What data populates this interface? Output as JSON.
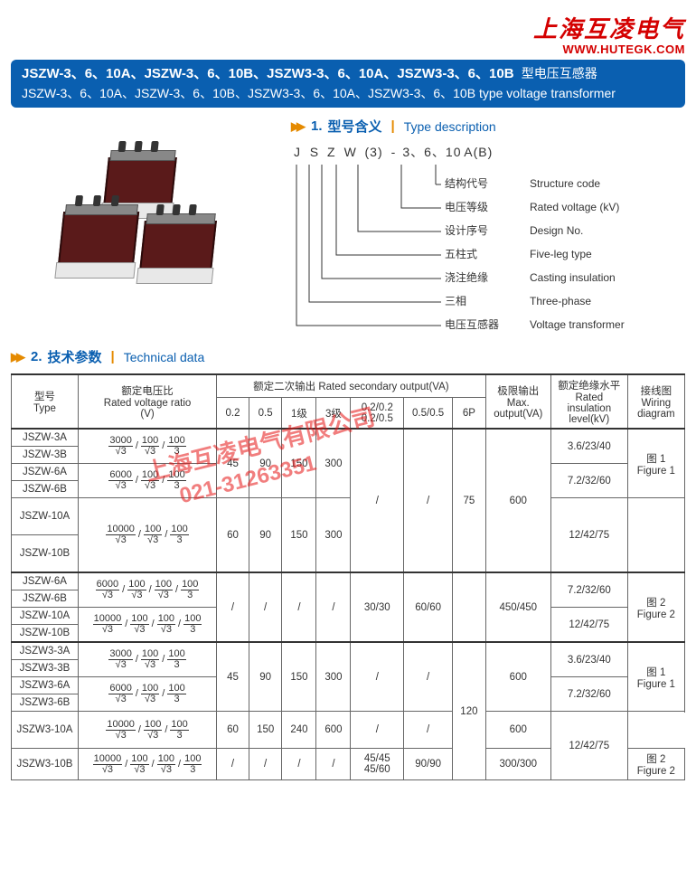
{
  "brand": {
    "cn": "上海互凌电气",
    "url": "WWW.HUTEGK.COM"
  },
  "title": {
    "cn_models": "JSZW-3、6、10A、JSZW-3、6、10B、JSZW3-3、6、10A、JSZW3-3、6、10B",
    "cn_suffix": "型电压互感器",
    "en": "JSZW-3、6、10A、JSZW-3、6、10B、JSZW3-3、6、10A、JSZW3-3、6、10B type voltage transformer"
  },
  "section1": {
    "num": "1.",
    "cn": "型号含义",
    "en": "Type description"
  },
  "type_code": {
    "chars": [
      "J",
      "S",
      "Z",
      "W",
      "(3)",
      "-",
      "3、6、10",
      "A(B)"
    ],
    "rows": [
      {
        "cn": "结构代号",
        "en": "Structure code"
      },
      {
        "cn": "电压等级",
        "en": "Rated voltage (kV)"
      },
      {
        "cn": "设计序号",
        "en": "Design No."
      },
      {
        "cn": "五柱式",
        "en": "Five-leg type"
      },
      {
        "cn": "浇注绝缘",
        "en": "Casting insulation"
      },
      {
        "cn": "三相",
        "en": "Three-phase"
      },
      {
        "cn": "电压互感器",
        "en": "Voltage transformer"
      }
    ]
  },
  "section2": {
    "num": "2.",
    "cn": "技术参数",
    "en": "Technical data"
  },
  "watermark": {
    "line1": "上海互凌电气有限公司",
    "line2": "021-31263351"
  },
  "headers": {
    "type": "型号\nType",
    "ratio": "额定电压比\nRated voltage ratio\n(V)",
    "secondary": "额定二次输出  Rated secondary output(VA)",
    "sec_cols_1": [
      "0.2",
      "0.5",
      "1级",
      "3级"
    ],
    "sec_cols_2a": "0.2/0.2\n0.2/0.5",
    "sec_cols_2b": "0.5/0.5",
    "sec_cols_2c": "6P",
    "max": "极限输出\nMax.\noutput(VA)",
    "insul": "额定绝缘水平\nRated insulation\nlevel(kV)",
    "wiring": "接线图\nWiring\ndiagram"
  },
  "ratios": {
    "r3000_3": [
      [
        "3000",
        "√3"
      ],
      [
        "100",
        "√3"
      ],
      [
        "100",
        "3"
      ]
    ],
    "r6000_3": [
      [
        "6000",
        "√3"
      ],
      [
        "100",
        "√3"
      ],
      [
        "100",
        "3"
      ]
    ],
    "r10000_3": [
      [
        "10000",
        "√3"
      ],
      [
        "100",
        "√3"
      ],
      [
        "100",
        "3"
      ]
    ],
    "r6000_4": [
      [
        "6000",
        "√3"
      ],
      [
        "100",
        "√3"
      ],
      [
        "100",
        "√3"
      ],
      [
        "100",
        "3"
      ]
    ],
    "r10000_4": [
      [
        "10000",
        "√3"
      ],
      [
        "100",
        "√3"
      ],
      [
        "100",
        "√3"
      ],
      [
        "100",
        "3"
      ]
    ]
  },
  "vals": {
    "s45": "45",
    "s90": "90",
    "s150": "150",
    "s300": "300",
    "s60": "60",
    "s240": "240",
    "s600": "600",
    "slash": "/",
    "v75": "75",
    "v120": "120",
    "m600": "600",
    "m450": "450/450",
    "m300": "300/300",
    "i3": "3.6/23/40",
    "i7": "7.2/32/60",
    "i12": "12/42/75",
    "f1": "图 1\nFigure 1",
    "f2": "图 2\nFigure 2",
    "d30": "30/30",
    "d60": "60/60",
    "d4545": "45/45\n45/60",
    "d90": "90/90"
  },
  "types": {
    "t1a": "JSZW-3A",
    "t1b": "JSZW-3B",
    "t2a": "JSZW-6A",
    "t2b": "JSZW-6B",
    "t3a": "JSZW-10A",
    "t3b": "JSZW-10B",
    "t4a": "JSZW-6A",
    "t4b": "JSZW-6B",
    "t5a": "JSZW-10A",
    "t5b": "JSZW-10B",
    "t6a": "JSZW3-3A",
    "t6b": "JSZW3-3B",
    "t7a": "JSZW3-6A",
    "t7b": "JSZW3-6B",
    "t8a": "JSZW3-10A",
    "t8b": "JSZW3-10B"
  }
}
